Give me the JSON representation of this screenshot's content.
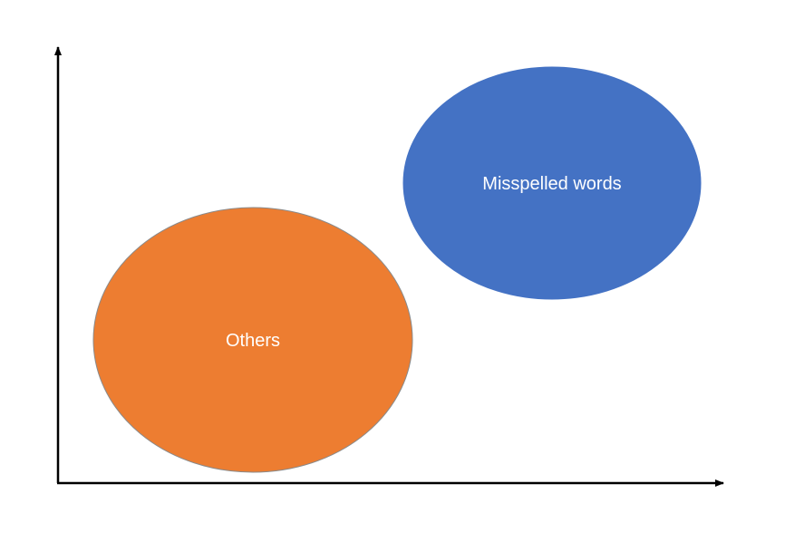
{
  "clusters": {
    "others": {
      "label": "Others",
      "color": "#ED7D31"
    },
    "misspelled": {
      "label": "Misspelled words",
      "color": "#4472C4"
    }
  },
  "axes": {
    "color": "#000000"
  }
}
